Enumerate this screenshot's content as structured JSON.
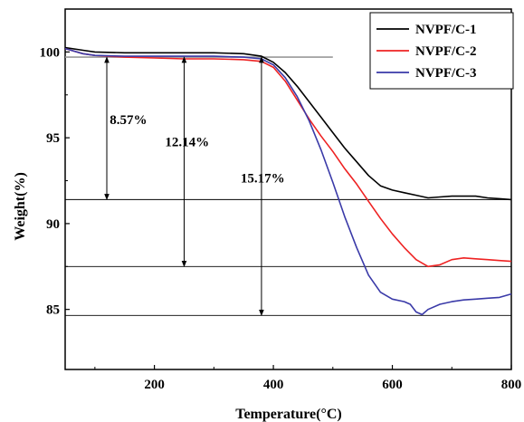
{
  "chart_data": {
    "type": "line",
    "xlabel": "Temperature(°C)",
    "ylabel": "Weight(%)",
    "xlim": [
      50,
      800
    ],
    "ylim": [
      81.5,
      102.5
    ],
    "xticks": [
      200,
      400,
      600,
      800
    ],
    "yticks": [
      85,
      90,
      95,
      100
    ],
    "legend_position": "top-right",
    "series": [
      {
        "name": "NVPF/C-1",
        "color": "#000000",
        "x": [
          50,
          80,
          100,
          150,
          200,
          250,
          300,
          350,
          380,
          400,
          420,
          440,
          460,
          480,
          500,
          520,
          540,
          560,
          580,
          600,
          620,
          640,
          660,
          680,
          700,
          720,
          740,
          760,
          780,
          800
        ],
        "y": [
          100.25,
          100.1,
          100.0,
          99.95,
          99.95,
          99.95,
          99.95,
          99.9,
          99.75,
          99.4,
          98.8,
          98.0,
          97.1,
          96.2,
          95.3,
          94.4,
          93.6,
          92.8,
          92.2,
          91.95,
          91.8,
          91.65,
          91.5,
          91.55,
          91.6,
          91.6,
          91.6,
          91.5,
          91.45,
          91.4
        ]
      },
      {
        "name": "NVPF/C-2",
        "color": "#ee2222",
        "x": [
          50,
          80,
          100,
          150,
          200,
          250,
          300,
          350,
          380,
          400,
          420,
          440,
          460,
          480,
          500,
          520,
          540,
          560,
          580,
          600,
          620,
          640,
          660,
          680,
          700,
          720,
          740,
          760,
          780,
          800
        ],
        "y": [
          100.2,
          99.9,
          99.8,
          99.7,
          99.65,
          99.6,
          99.6,
          99.55,
          99.45,
          99.1,
          98.3,
          97.2,
          96.1,
          95.1,
          94.2,
          93.2,
          92.3,
          91.3,
          90.3,
          89.4,
          88.6,
          87.9,
          87.5,
          87.6,
          87.9,
          88.0,
          87.95,
          87.9,
          87.85,
          87.8
        ]
      },
      {
        "name": "NVPF/C-3",
        "color": "#3a3aa8",
        "x": [
          50,
          80,
          100,
          150,
          200,
          250,
          300,
          350,
          380,
          400,
          420,
          440,
          460,
          480,
          500,
          520,
          540,
          560,
          580,
          600,
          620,
          630,
          640,
          650,
          660,
          680,
          700,
          720,
          740,
          760,
          780,
          800
        ],
        "y": [
          100.2,
          99.9,
          99.8,
          99.75,
          99.75,
          99.75,
          99.75,
          99.7,
          99.6,
          99.25,
          98.5,
          97.4,
          96.0,
          94.3,
          92.4,
          90.4,
          88.6,
          87.0,
          86.0,
          85.6,
          85.45,
          85.3,
          84.85,
          84.7,
          85.0,
          85.3,
          85.45,
          85.55,
          85.6,
          85.65,
          85.7,
          85.9
        ]
      }
    ],
    "reference_lines": [
      {
        "y": 99.7,
        "x_from": 50,
        "x_to": 500,
        "color": "#999999"
      },
      {
        "y": 91.4,
        "x_from": 50,
        "x_to": 800,
        "color": "#000000"
      },
      {
        "y": 87.5,
        "x_from": 50,
        "x_to": 800,
        "color": "#000000"
      },
      {
        "y": 84.65,
        "x_from": 50,
        "x_to": 800,
        "color": "#000000"
      }
    ],
    "arrows": [
      {
        "x": 120,
        "y_top": 99.7,
        "y_bottom": 91.4
      },
      {
        "x": 250,
        "y_top": 99.7,
        "y_bottom": 87.5
      },
      {
        "x": 380,
        "y_top": 99.7,
        "y_bottom": 84.65
      }
    ],
    "annotations": [
      {
        "text": "8.57%",
        "x": 125,
        "y": 95.8
      },
      {
        "text": "12.14%",
        "x": 218,
        "y": 94.5
      },
      {
        "text": "15.17%",
        "x": 345,
        "y": 92.4
      }
    ]
  }
}
